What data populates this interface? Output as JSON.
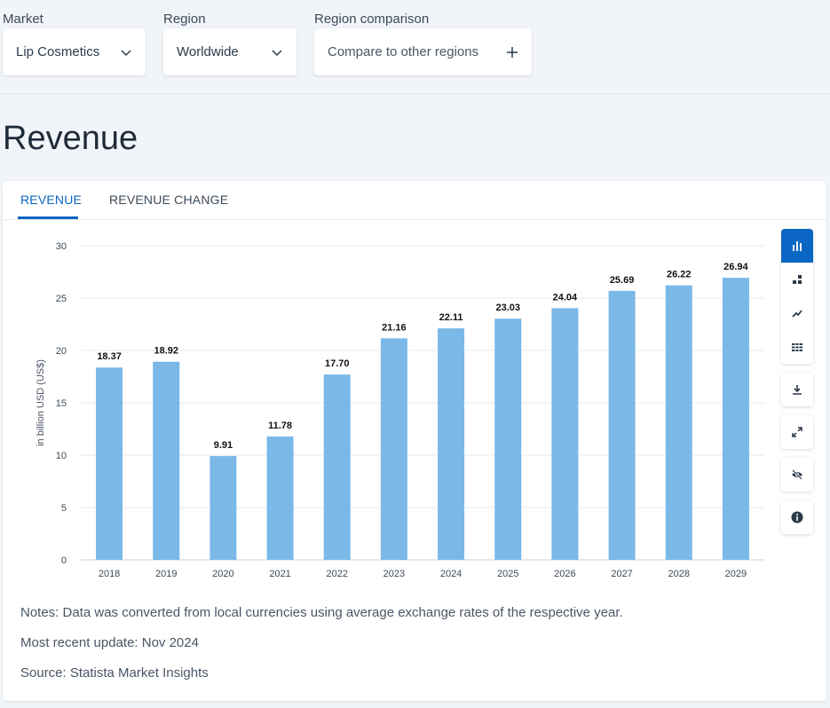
{
  "filters": {
    "market": {
      "label": "Market",
      "value": "Lip Cosmetics"
    },
    "region": {
      "label": "Region",
      "value": "Worldwide"
    },
    "comparison": {
      "label": "Region comparison",
      "value": "Compare to other regions"
    }
  },
  "page": {
    "title": "Revenue"
  },
  "tabs": [
    {
      "label": "REVENUE",
      "active": true
    },
    {
      "label": "REVENUE CHANGE",
      "active": false
    }
  ],
  "chart_data": {
    "type": "bar",
    "categories": [
      "2018",
      "2019",
      "2020",
      "2021",
      "2022",
      "2023",
      "2024",
      "2025",
      "2026",
      "2027",
      "2028",
      "2029"
    ],
    "values": [
      18.37,
      18.92,
      9.91,
      11.78,
      17.7,
      21.16,
      22.11,
      23.03,
      24.04,
      25.69,
      26.22,
      26.94
    ],
    "value_labels": [
      "18.37",
      "18.92",
      "9.91",
      "11.78",
      "17.70",
      "21.16",
      "22.11",
      "23.03",
      "24.04",
      "25.69",
      "26.22",
      "26.94"
    ],
    "ylabel": "in billion USD (US$)",
    "ylim": [
      0,
      30
    ],
    "yticks": [
      0,
      5,
      10,
      15,
      20,
      25,
      30
    ],
    "grid": true,
    "bar_color": "#7ab8e8"
  },
  "notes": {
    "note": "Notes: Data was converted from local currencies using average exchange rates of the respective year.",
    "update": "Most recent update: Nov 2024",
    "source": "Source: Statista Market Insights"
  },
  "toolbar": {
    "chart_types": [
      "bar-chart-icon",
      "stacked-chart-icon",
      "line-chart-icon",
      "table-icon"
    ],
    "actions": [
      "download-icon",
      "fullscreen-icon",
      "hide-icon",
      "info-icon"
    ]
  },
  "colors": {
    "accent": "#0a66c2",
    "bar": "#7ab8e8"
  }
}
